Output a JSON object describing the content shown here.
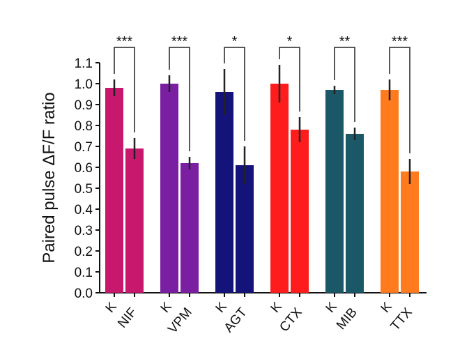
{
  "chart_data": {
    "type": "bar",
    "y_label": "Paired pulse ΔF/F ratio",
    "categories": [
      "K",
      "NIF",
      "K",
      "VPM",
      "K",
      "AGT",
      "K",
      "CTX",
      "K",
      "MIB",
      "K",
      "TTX"
    ],
    "values": [
      0.98,
      0.69,
      1.0,
      0.62,
      0.96,
      0.61,
      1.0,
      0.78,
      0.97,
      0.76,
      0.97,
      0.58
    ],
    "errors": [
      0.04,
      0.05,
      0.04,
      0.03,
      0.11,
      0.09,
      0.09,
      0.06,
      0.02,
      0.03,
      0.05,
      0.06
    ],
    "colors": [
      "#c8186e",
      "#c8186e",
      "#7b1fa2",
      "#7b1fa2",
      "#14137a",
      "#14137a",
      "#ff1c1c",
      "#ff1c1c",
      "#1b5867",
      "#1b5867",
      "#ff7b1e",
      "#ff7b1e"
    ],
    "significance": [
      "***",
      "***",
      "*",
      "*",
      "**",
      "***"
    ],
    "ylim": [
      0,
      1.1
    ],
    "yticks": [
      {
        "value": 0,
        "label": "0.0"
      },
      0.1,
      0.2,
      0.3,
      0.4,
      0.5,
      0.6,
      0.7,
      0.8,
      0.9,
      {
        "value": 1,
        "label": "1.0"
      },
      1.1
    ]
  }
}
